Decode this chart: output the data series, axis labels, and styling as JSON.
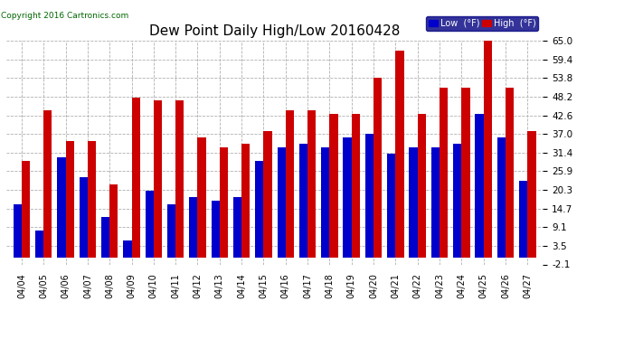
{
  "title": "Dew Point Daily High/Low 20160428",
  "copyright": "Copyright 2016 Cartronics.com",
  "dates": [
    "04/04",
    "04/05",
    "04/06",
    "04/07",
    "04/08",
    "04/09",
    "04/10",
    "04/11",
    "04/12",
    "04/13",
    "04/14",
    "04/15",
    "04/16",
    "04/17",
    "04/18",
    "04/19",
    "04/20",
    "04/21",
    "04/22",
    "04/23",
    "04/24",
    "04/25",
    "04/26",
    "04/27"
  ],
  "low_values": [
    16,
    8,
    30,
    24,
    12,
    5,
    20,
    16,
    18,
    17,
    18,
    29,
    33,
    34,
    33,
    36,
    37,
    31,
    33,
    33,
    34,
    43,
    36,
    23
  ],
  "high_values": [
    29,
    44,
    35,
    35,
    22,
    48,
    47,
    47,
    36,
    33,
    34,
    38,
    44,
    44,
    43,
    43,
    54,
    62,
    43,
    51,
    51,
    65,
    51,
    38
  ],
  "low_color": "#0000cc",
  "high_color": "#cc0000",
  "bg_color": "#ffffff",
  "plot_bg_color": "#ffffff",
  "grid_color": "#b0b0b0",
  "ymin": -2.1,
  "ymax": 65.0,
  "yticks": [
    -2.1,
    3.5,
    9.1,
    14.7,
    20.3,
    25.9,
    31.4,
    37.0,
    42.6,
    48.2,
    53.8,
    59.4,
    65.0
  ],
  "title_fontsize": 11,
  "copyright_fontsize": 6.5,
  "legend_low_label": "Low  (°F)",
  "legend_high_label": "High  (°F)"
}
